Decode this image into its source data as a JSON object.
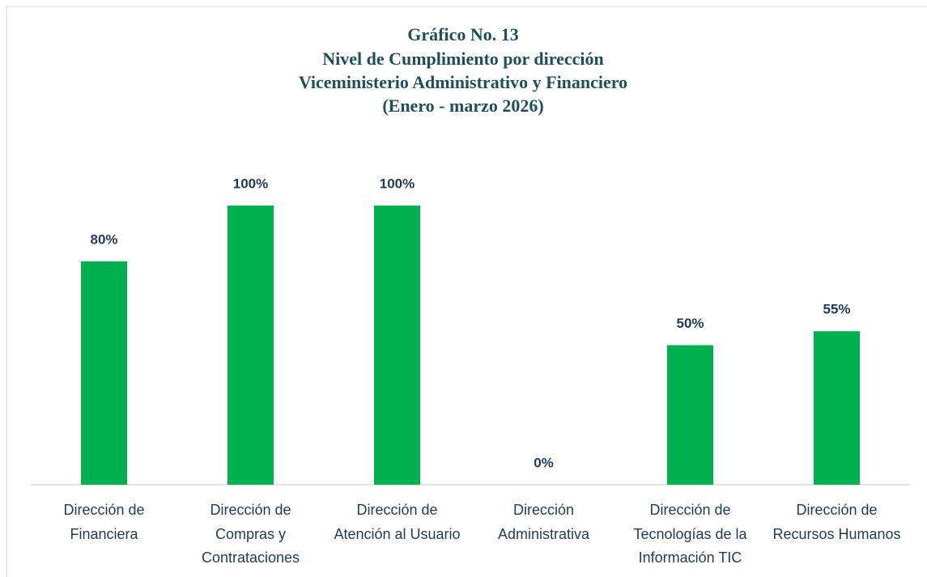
{
  "chart_data": {
    "type": "bar",
    "title": [
      "Gráfico No. 13",
      "Nivel de Cumplimiento por dirección",
      "Viceministerio Administrativo y Financiero",
      "(Enero - marzo 2026)"
    ],
    "categories": [
      "Dirección de Financiera",
      "Dirección de Compras y Contrataciones",
      "Dirección de Atención al Usuario",
      "Dirección Administrativa",
      "Dirección de Tecnologías de la Información TIC",
      "Dirección de Recursos Humanos"
    ],
    "values": [
      80,
      100,
      100,
      0,
      50,
      55
    ],
    "value_labels": [
      "80%",
      "100%",
      "100%",
      "0%",
      "50%",
      "55%"
    ],
    "color": "#00b04f",
    "ylim": [
      0,
      100
    ]
  }
}
